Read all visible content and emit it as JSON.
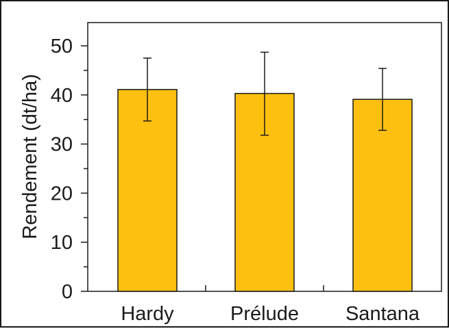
{
  "chart_data": {
    "type": "bar",
    "categories": [
      "Hardy",
      "Prélude",
      "Santana"
    ],
    "values": [
      41.1,
      40.3,
      39.1
    ],
    "error_bars": [
      {
        "low": 34.7,
        "high": 47.5
      },
      {
        "low": 31.8,
        "high": 48.7
      },
      {
        "low": 32.8,
        "high": 45.4
      }
    ],
    "title": "",
    "xlabel": "",
    "ylabel": "Rendement (dt/ha)",
    "ylim": [
      0,
      54
    ],
    "yticks": [
      "0",
      "10",
      "20",
      "30",
      "40",
      "50"
    ],
    "grid": false,
    "legend": "none",
    "colors": {
      "bar_fill": "#FDC010",
      "bar_stroke": "#1a1a1a",
      "axis": "#1a1a1a"
    }
  }
}
